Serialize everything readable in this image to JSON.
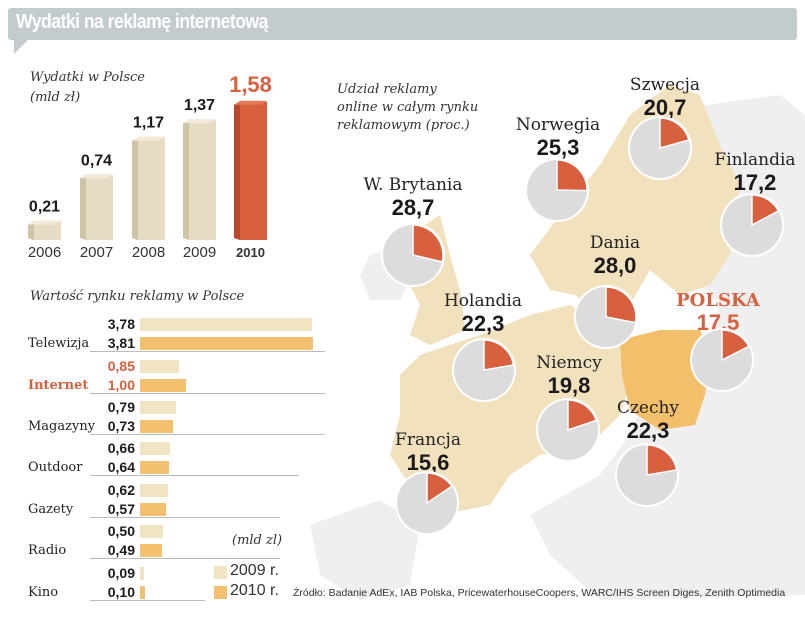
{
  "header": {
    "title": "Wydatki na reklamę internetową"
  },
  "colors": {
    "header_bg": "#c4cbcf",
    "accent_red": "#d8603f",
    "bar_beige": "#e6dcc3",
    "bar_2009": "#f1e4c2",
    "bar_2010": "#f2c06e",
    "map_land": "#f1e1bd",
    "map_poland": "#f3bf6b",
    "map_other": "#efefef",
    "pie_grey": "#dcdcdc"
  },
  "chart_data": [
    {
      "type": "bar",
      "title": "Wydatki w Polsce",
      "subtitle": "(mld zł)",
      "categories": [
        "2006",
        "2007",
        "2008",
        "2009",
        "2010"
      ],
      "values": [
        0.21,
        0.74,
        1.17,
        1.37,
        1.58
      ],
      "value_labels": [
        "0,21",
        "0,74",
        "1,17",
        "1,37",
        "1,58"
      ],
      "highlight": "2010",
      "xlabel": "",
      "ylabel": "mld zł",
      "ylim": [
        0,
        1.6
      ]
    },
    {
      "type": "bar",
      "orientation": "horizontal",
      "title": "Wartość rynku reklamy w Polsce",
      "unit_label": "(mld zl)",
      "categories": [
        "Telewizja",
        "Internet",
        "Magazyny",
        "Outdoor",
        "Gazety",
        "Radio",
        "Kino"
      ],
      "highlight": "Internet",
      "series": [
        {
          "name": "2009 r.",
          "values": [
            3.78,
            0.85,
            0.79,
            0.66,
            0.62,
            0.5,
            0.09
          ],
          "labels": [
            "3,78",
            "0,85",
            "0,79",
            "0,66",
            "0,62",
            "0,50",
            "0,09"
          ]
        },
        {
          "name": "2010 r.",
          "values": [
            3.81,
            1.0,
            0.73,
            0.64,
            0.57,
            0.49,
            0.1
          ],
          "labels": [
            "3,81",
            "1,00",
            "0,73",
            "0,64",
            "0,57",
            "0,49",
            "0,10"
          ]
        }
      ],
      "legend": [
        "2009 r.",
        "2010 r."
      ],
      "legend_position": "bottom-right",
      "xlim": [
        0,
        4
      ]
    },
    {
      "type": "pie",
      "title": "Udział reklamy online w całym rynku reklamowym (proc.)",
      "title_lines": [
        "Udział reklamy",
        "online w całym rynku",
        "reklamowym (proc.)"
      ],
      "countries": [
        {
          "name": "W. Brytania",
          "value": 28.7,
          "label": "28,7"
        },
        {
          "name": "Norwegia",
          "value": 25.3,
          "label": "25,3"
        },
        {
          "name": "Szwecja",
          "value": 20.7,
          "label": "20,7"
        },
        {
          "name": "Finlandia",
          "value": 17.2,
          "label": "17,2"
        },
        {
          "name": "Dania",
          "value": 28.0,
          "label": "28,0"
        },
        {
          "name": "Holandia",
          "value": 22.3,
          "label": "22,3"
        },
        {
          "name": "POLSKA",
          "value": 17.5,
          "label": "17,5",
          "highlight": true
        },
        {
          "name": "Niemcy",
          "value": 19.8,
          "label": "19,8"
        },
        {
          "name": "Czechy",
          "value": 22.3,
          "label": "22,3"
        },
        {
          "name": "Francja",
          "value": 15.6,
          "label": "15,6"
        }
      ]
    }
  ],
  "source": "Źródło: Badanie AdEx, IAB Polska, PricewaterhouseCoopers, WARC/IHS Screen Diges, Zenith Optimedia"
}
